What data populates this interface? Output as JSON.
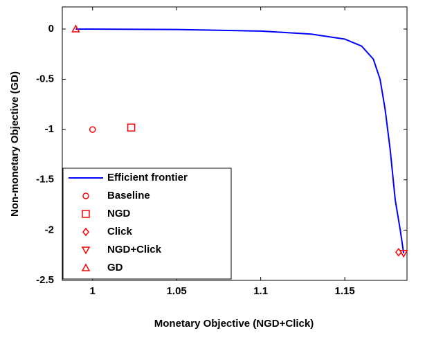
{
  "chart_data": {
    "type": "line",
    "xlabel": "Monetary Objective (NGD+Click)",
    "ylabel": "Non-monetary Objective (GD)",
    "xlim": [
      0.982,
      1.187
    ],
    "ylim": [
      -2.5,
      0.22
    ],
    "xticks": [
      1,
      1.05,
      1.1,
      1.15
    ],
    "yticks": [
      0,
      -0.5,
      -1,
      -1.5,
      -2,
      -2.5
    ],
    "grid": false,
    "legend": "southwest",
    "series": [
      {
        "name": "Efficient frontier",
        "color": "#0000ff",
        "marker": "none",
        "x": [
          0.99,
          1.05,
          1.1,
          1.13,
          1.15,
          1.16,
          1.167,
          1.171,
          1.174,
          1.177,
          1.18,
          1.183,
          1.185
        ],
        "values": [
          0,
          -0.005,
          -0.02,
          -0.05,
          -0.1,
          -0.17,
          -0.3,
          -0.5,
          -0.8,
          -1.2,
          -1.7,
          -2.0,
          -2.23
        ]
      },
      {
        "name": "Baseline",
        "color": "#ff0000",
        "marker": "o",
        "x": [
          1.0
        ],
        "values": [
          -1.0
        ]
      },
      {
        "name": "NGD",
        "color": "#ff0000",
        "marker": "s",
        "x": [
          1.023
        ],
        "values": [
          -0.98
        ]
      },
      {
        "name": "Click",
        "color": "#ff0000",
        "marker": "d",
        "x": [
          1.182
        ],
        "values": [
          -2.22
        ]
      },
      {
        "name": "NGD+Click",
        "color": "#ff0000",
        "marker": "v",
        "x": [
          1.185
        ],
        "values": [
          -2.23
        ]
      },
      {
        "name": "GD",
        "color": "#ff0000",
        "marker": "^",
        "x": [
          0.99
        ],
        "values": [
          0
        ]
      }
    ]
  }
}
